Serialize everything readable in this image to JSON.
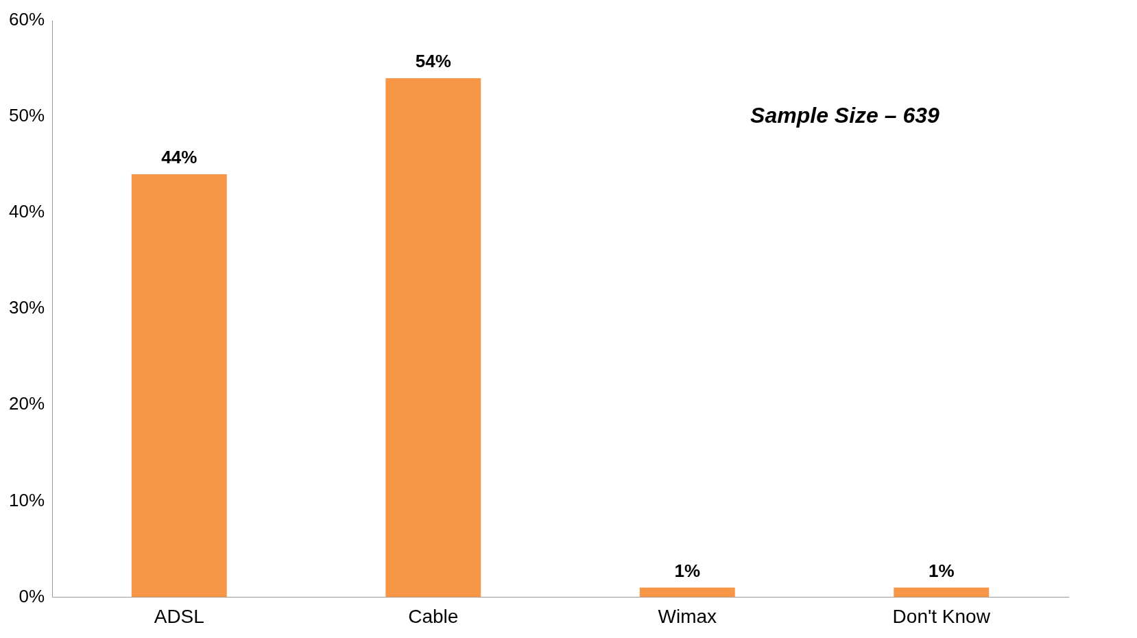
{
  "chart_data": {
    "type": "bar",
    "categories": [
      "ADSL",
      "Cable",
      "Wimax",
      "Don't Know"
    ],
    "values": [
      44,
      54,
      1,
      1
    ],
    "value_labels": [
      "44%",
      "54%",
      "1%",
      "1%"
    ],
    "color": "#f79646",
    "ylim": [
      0,
      60
    ],
    "yticks": [
      {
        "value": 0,
        "label": "0%"
      },
      {
        "value": 10,
        "label": "10%"
      },
      {
        "value": 20,
        "label": "20%"
      },
      {
        "value": 30,
        "label": "30%"
      },
      {
        "value": 40,
        "label": "40%"
      },
      {
        "value": 50,
        "label": "50%"
      },
      {
        "value": 60,
        "label": "60%"
      }
    ],
    "annotations": [
      "Sample Size – 639"
    ],
    "grid": false,
    "legend": false
  }
}
